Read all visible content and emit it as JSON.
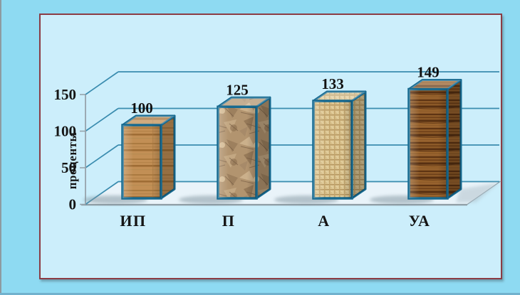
{
  "chart_data": {
    "type": "bar",
    "projection": "3d",
    "title": "",
    "xlabel": "",
    "ylabel": "проценты",
    "categories": [
      "ИП",
      "П",
      "А",
      "УА"
    ],
    "values": [
      100,
      125,
      133,
      149
    ],
    "value_labels": [
      "100",
      "125",
      "133",
      "149"
    ],
    "yticks": [
      0,
      50,
      100,
      150
    ],
    "ytick_labels": [
      "0",
      "50",
      "100",
      "150"
    ],
    "ylim": [
      0,
      150
    ],
    "grid": true,
    "legend_position": "none",
    "bar_textures": [
      "light-wood",
      "crumpled-paper",
      "burlap",
      "dark-wood"
    ],
    "colors": {
      "gridline": "#3a8caf",
      "axis": "#97a3ab",
      "bar_border": "#176a90",
      "floor_fill": "#e9f3f9",
      "floor_edge": "#8f9ea6",
      "shadow": "#7e929c",
      "label": "#151515"
    }
  },
  "frame": {
    "border_color": "#8b3c44",
    "inner_background": "#cceefb",
    "outer_background": "#8edaf2"
  }
}
